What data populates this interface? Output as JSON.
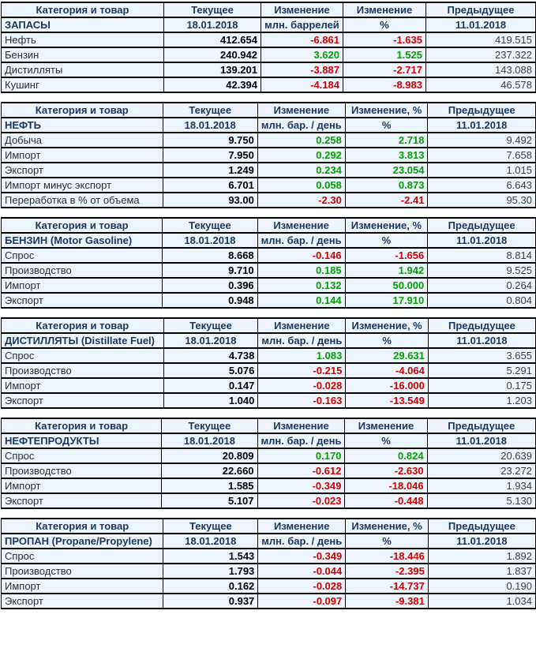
{
  "colors": {
    "cell_background": "#eef4fc",
    "header_text": "#17375e",
    "positive_change": "#00a000",
    "negative_change": "#d40000",
    "border": "#000000"
  },
  "tables": [
    {
      "id": "zapasy",
      "headers": [
        "Категория и товар",
        "Текущее",
        "Изменение",
        "Изменение",
        "Предыдущее"
      ],
      "section": "ЗАПАСЫ",
      "current_date": "18.01.2018",
      "unit": "млн. баррелей",
      "percent_label": "%",
      "previous_date": "11.01.2018",
      "rows": [
        {
          "label": "Нефть",
          "current": "412.654",
          "change": "-6.861",
          "change_pct": "-1.635",
          "previous": "419.515"
        },
        {
          "label": "Бензин",
          "current": "240.942",
          "change": "3.620",
          "change_pct": "1.525",
          "previous": "237.322"
        },
        {
          "label": "Дистилляты",
          "current": "139.201",
          "change": "-3.887",
          "change_pct": "-2.717",
          "previous": "143.088"
        },
        {
          "label": "Кушинг",
          "current": "42.394",
          "change": "-4.184",
          "change_pct": "-8.983",
          "previous": "46.578"
        }
      ]
    },
    {
      "id": "neft",
      "headers": [
        "Категория и товар",
        "Текущее",
        "Изменение",
        "Изменение, %",
        "Предыдущее"
      ],
      "section": "НЕФТЬ",
      "current_date": "18.01.2018",
      "unit": "млн. бар. / день",
      "percent_label": "%",
      "previous_date": "11.01.2018",
      "rows": [
        {
          "label": "Добыча",
          "current": "9.750",
          "change": "0.258",
          "change_pct": "2.718",
          "previous": "9.492"
        },
        {
          "label": "Импорт",
          "current": "7.950",
          "change": "0.292",
          "change_pct": "3.813",
          "previous": "7.658"
        },
        {
          "label": "Экспорт",
          "current": "1.249",
          "change": "0.234",
          "change_pct": "23.054",
          "previous": "1.015"
        },
        {
          "label": "Импорт минус экспорт",
          "current": "6.701",
          "change": "0.058",
          "change_pct": "0.873",
          "previous": "6.643"
        },
        {
          "label": "Переработка в % от объема",
          "current": "93.00",
          "change": "-2.30",
          "change_pct": "-2.41",
          "previous": "95.30"
        }
      ]
    },
    {
      "id": "benzin",
      "headers": [
        "Категория и товар",
        "Текущее",
        "Изменение",
        "Изменение, %",
        "Предыдущее"
      ],
      "section": "БЕНЗИН (Motor Gasoline)",
      "current_date": "18.01.2018",
      "unit": "млн. бар. / день",
      "percent_label": "%",
      "previous_date": "11.01.2018",
      "rows": [
        {
          "label": "Спрос",
          "current": "8.668",
          "change": "-0.146",
          "change_pct": "-1.656",
          "previous": "8.814"
        },
        {
          "label": "Производство",
          "current": "9.710",
          "change": "0.185",
          "change_pct": "1.942",
          "previous": "9.525"
        },
        {
          "label": "Импорт",
          "current": "0.396",
          "change": "0.132",
          "change_pct": "50.000",
          "previous": "0.264"
        },
        {
          "label": "Экспорт",
          "current": "0.948",
          "change": "0.144",
          "change_pct": "17.910",
          "previous": "0.804"
        }
      ]
    },
    {
      "id": "distillyaty",
      "headers": [
        "Категория и товар",
        "Текущее",
        "Изменение",
        "Изменение, %",
        "Предыдущее"
      ],
      "section": "ДИСТИЛЛЯТЫ (Distillate Fuel)",
      "current_date": "18.01.2018",
      "unit": "млн. бар. / день",
      "percent_label": "%",
      "previous_date": "11.01.2018",
      "rows": [
        {
          "label": "Спрос",
          "current": "4.738",
          "change": "1.083",
          "change_pct": "29.631",
          "previous": "3.655"
        },
        {
          "label": "Производство",
          "current": "5.076",
          "change": "-0.215",
          "change_pct": "-4.064",
          "previous": "5.291"
        },
        {
          "label": "Импорт",
          "current": "0.147",
          "change": "-0.028",
          "change_pct": "-16.000",
          "previous": "0.175"
        },
        {
          "label": "Экспорт",
          "current": "1.040",
          "change": "-0.163",
          "change_pct": "-13.549",
          "previous": "1.203"
        }
      ]
    },
    {
      "id": "nefteprodukty",
      "headers": [
        "Категория и товар",
        "Текущее",
        "Изменение",
        "Изменение",
        "Предыдущее"
      ],
      "section": "НЕФТЕПРОДУКТЫ",
      "current_date": "18.01.2018",
      "unit": "млн. бар. / день",
      "percent_label": "%",
      "previous_date": "11.01.2018",
      "rows": [
        {
          "label": "Спрос",
          "current": "20.809",
          "change": "0.170",
          "change_pct": "0.824",
          "previous": "20.639"
        },
        {
          "label": "Производство",
          "current": "22.660",
          "change": "-0.612",
          "change_pct": "-2.630",
          "previous": "23.272"
        },
        {
          "label": "Импорт",
          "current": "1.585",
          "change": "-0.349",
          "change_pct": "-18.046",
          "previous": "1.934"
        },
        {
          "label": "Экспорт",
          "current": "5.107",
          "change": "-0.023",
          "change_pct": "-0.448",
          "previous": "5.130"
        }
      ]
    },
    {
      "id": "propan",
      "headers": [
        "Категория и товар",
        "Текущее",
        "Изменение",
        "Изменение, %",
        "Предыдущее"
      ],
      "section": "ПРОПАН (Propane/Propylene)",
      "current_date": "18.01.2018",
      "unit": "млн. бар. / день",
      "percent_label": "%",
      "previous_date": "11.01.2018",
      "rows": [
        {
          "label": "Спрос",
          "current": "1.543",
          "change": "-0.349",
          "change_pct": "-18.446",
          "previous": "1.892"
        },
        {
          "label": "Производство",
          "current": "1.793",
          "change": "-0.044",
          "change_pct": "-2.395",
          "previous": "1.837"
        },
        {
          "label": "Импорт",
          "current": "0.162",
          "change": "-0.028",
          "change_pct": "-14.737",
          "previous": "0.190"
        },
        {
          "label": "Экспорт",
          "current": "0.937",
          "change": "-0.097",
          "change_pct": "-9.381",
          "previous": "1.034"
        }
      ]
    }
  ]
}
